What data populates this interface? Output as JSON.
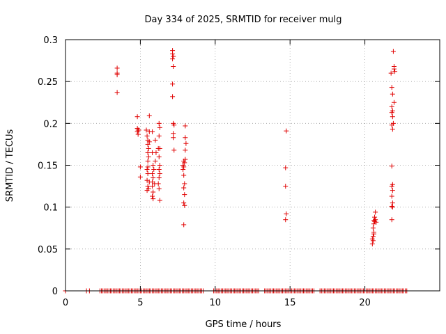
{
  "chart_data": {
    "type": "scatter",
    "title": "Day 334 of 2025, SRMTID for receiver mulg",
    "xlabel": "GPS time / hours",
    "ylabel": "SRMTID / TECUs",
    "xlim": [
      0,
      25
    ],
    "ylim": [
      0,
      0.3
    ],
    "xticks": [
      0,
      5,
      10,
      15,
      20
    ],
    "xtick_labels": [
      "0",
      "5",
      "10",
      "15",
      "20"
    ],
    "yticks": [
      0,
      0.05,
      0.1,
      0.15,
      0.2,
      0.25,
      0.3
    ],
    "ytick_labels": [
      "0",
      "0.05",
      "0.1",
      "0.15",
      "0.2",
      "0.25",
      "0.3"
    ],
    "grid": true,
    "marker": "+",
    "color": "#e00000",
    "series": [
      {
        "name": "SRMTID",
        "points": [
          [
            3.45,
            0.266
          ],
          [
            3.45,
            0.26
          ],
          [
            3.45,
            0.258
          ],
          [
            3.45,
            0.237
          ],
          [
            4.8,
            0.208
          ],
          [
            4.8,
            0.194
          ],
          [
            4.85,
            0.192
          ],
          [
            4.8,
            0.19
          ],
          [
            4.9,
            0.192
          ],
          [
            4.85,
            0.187
          ],
          [
            5.0,
            0.148
          ],
          [
            5.0,
            0.136
          ],
          [
            5.4,
            0.192
          ],
          [
            5.45,
            0.185
          ],
          [
            5.5,
            0.18
          ],
          [
            5.6,
            0.19
          ],
          [
            5.5,
            0.175
          ],
          [
            5.55,
            0.17
          ],
          [
            5.5,
            0.165
          ],
          [
            5.6,
            0.209
          ],
          [
            5.6,
            0.178
          ],
          [
            5.55,
            0.16
          ],
          [
            5.5,
            0.155
          ],
          [
            5.5,
            0.148
          ],
          [
            5.45,
            0.145
          ],
          [
            5.5,
            0.14
          ],
          [
            5.45,
            0.132
          ],
          [
            5.5,
            0.125
          ],
          [
            5.45,
            0.12
          ],
          [
            5.6,
            0.13
          ],
          [
            5.55,
            0.122
          ],
          [
            5.8,
            0.19
          ],
          [
            5.8,
            0.165
          ],
          [
            5.85,
            0.15
          ],
          [
            5.8,
            0.14
          ],
          [
            5.85,
            0.135
          ],
          [
            5.8,
            0.13
          ],
          [
            5.8,
            0.125
          ],
          [
            5.85,
            0.118
          ],
          [
            5.8,
            0.113
          ],
          [
            5.85,
            0.11
          ],
          [
            5.9,
            0.145
          ],
          [
            5.95,
            0.128
          ],
          [
            6.0,
            0.18
          ],
          [
            6.05,
            0.165
          ],
          [
            6.0,
            0.155
          ],
          [
            6.25,
            0.2
          ],
          [
            6.3,
            0.195
          ],
          [
            6.25,
            0.185
          ],
          [
            6.2,
            0.17
          ],
          [
            6.3,
            0.17
          ],
          [
            6.25,
            0.16
          ],
          [
            6.3,
            0.15
          ],
          [
            6.25,
            0.145
          ],
          [
            6.3,
            0.14
          ],
          [
            6.25,
            0.135
          ],
          [
            6.2,
            0.128
          ],
          [
            6.25,
            0.122
          ],
          [
            6.3,
            0.108
          ],
          [
            7.15,
            0.287
          ],
          [
            7.15,
            0.283
          ],
          [
            7.2,
            0.28
          ],
          [
            7.15,
            0.277
          ],
          [
            7.2,
            0.268
          ],
          [
            7.15,
            0.247
          ],
          [
            7.15,
            0.232
          ],
          [
            7.2,
            0.2
          ],
          [
            7.25,
            0.198
          ],
          [
            7.2,
            0.188
          ],
          [
            7.2,
            0.183
          ],
          [
            7.25,
            0.168
          ],
          [
            7.9,
            0.155
          ],
          [
            7.95,
            0.153
          ],
          [
            7.85,
            0.15
          ],
          [
            7.9,
            0.148
          ],
          [
            7.85,
            0.145
          ],
          [
            7.9,
            0.138
          ],
          [
            7.95,
            0.128
          ],
          [
            7.9,
            0.123
          ],
          [
            7.95,
            0.115
          ],
          [
            7.9,
            0.105
          ],
          [
            7.95,
            0.102
          ],
          [
            7.9,
            0.079
          ],
          [
            8.0,
            0.197
          ],
          [
            8.0,
            0.183
          ],
          [
            8.05,
            0.176
          ],
          [
            8.0,
            0.168
          ],
          [
            8.0,
            0.157
          ],
          [
            14.75,
            0.191
          ],
          [
            14.7,
            0.147
          ],
          [
            14.7,
            0.125
          ],
          [
            14.75,
            0.092
          ],
          [
            14.7,
            0.085
          ],
          [
            20.55,
            0.065
          ],
          [
            20.6,
            0.068
          ],
          [
            20.5,
            0.062
          ],
          [
            20.55,
            0.06
          ],
          [
            20.5,
            0.056
          ],
          [
            20.6,
            0.07
          ],
          [
            20.55,
            0.075
          ],
          [
            20.6,
            0.08
          ],
          [
            20.65,
            0.083
          ],
          [
            20.7,
            0.085
          ],
          [
            20.65,
            0.088
          ],
          [
            20.7,
            0.094
          ],
          [
            20.6,
            0.084
          ],
          [
            20.75,
            0.082
          ],
          [
            21.75,
            0.26
          ],
          [
            21.8,
            0.243
          ],
          [
            21.85,
            0.235
          ],
          [
            21.8,
            0.22
          ],
          [
            21.85,
            0.215
          ],
          [
            21.8,
            0.213
          ],
          [
            21.85,
            0.208
          ],
          [
            21.8,
            0.198
          ],
          [
            21.85,
            0.193
          ],
          [
            21.8,
            0.149
          ],
          [
            21.85,
            0.127
          ],
          [
            21.8,
            0.125
          ],
          [
            21.85,
            0.12
          ],
          [
            21.8,
            0.113
          ],
          [
            21.85,
            0.105
          ],
          [
            21.8,
            0.101
          ],
          [
            21.85,
            0.1
          ],
          [
            21.8,
            0.085
          ],
          [
            21.9,
            0.286
          ],
          [
            21.95,
            0.268
          ],
          [
            21.95,
            0.265
          ],
          [
            22.0,
            0.262
          ],
          [
            21.95,
            0.225
          ],
          [
            21.9,
            0.2
          ]
        ],
        "zero_points": [
          0.0,
          1.4,
          1.6,
          2.3,
          2.4,
          2.5,
          2.6,
          2.7,
          2.8,
          2.9,
          3.0,
          3.1,
          3.2,
          3.3,
          3.4,
          3.5,
          3.6,
          3.7,
          3.8,
          3.9,
          4.0,
          4.1,
          4.2,
          4.3,
          4.4,
          4.5,
          4.6,
          4.7,
          4.8,
          4.9,
          5.0,
          5.1,
          5.2,
          5.3,
          5.4,
          5.5,
          5.6,
          5.7,
          5.8,
          5.9,
          6.0,
          6.1,
          6.2,
          6.3,
          6.4,
          6.5,
          6.6,
          6.7,
          6.8,
          6.9,
          7.0,
          7.1,
          7.2,
          7.3,
          7.4,
          7.5,
          7.6,
          7.7,
          7.8,
          7.9,
          8.0,
          8.1,
          8.2,
          8.3,
          8.4,
          8.5,
          8.6,
          8.7,
          8.8,
          8.9,
          9.0,
          9.1,
          9.2,
          9.9,
          10.0,
          10.1,
          10.2,
          10.3,
          10.4,
          10.5,
          10.6,
          10.7,
          10.8,
          10.9,
          11.0,
          11.1,
          11.2,
          11.3,
          11.4,
          11.5,
          11.6,
          11.7,
          11.8,
          11.9,
          12.0,
          12.1,
          12.2,
          12.3,
          12.4,
          12.5,
          12.6,
          12.7,
          12.8,
          12.9,
          13.3,
          13.4,
          13.5,
          13.6,
          13.7,
          13.8,
          13.9,
          14.0,
          14.1,
          14.2,
          14.3,
          14.4,
          14.5,
          14.6,
          14.7,
          14.8,
          14.9,
          15.0,
          15.1,
          15.2,
          15.3,
          15.4,
          15.5,
          15.6,
          15.7,
          15.8,
          15.9,
          16.0,
          16.1,
          16.2,
          16.3,
          16.4,
          16.5,
          16.6,
          17.0,
          17.1,
          17.2,
          17.3,
          17.4,
          17.5,
          17.6,
          17.7,
          17.8,
          17.9,
          18.0,
          18.1,
          18.2,
          18.3,
          18.4,
          18.5,
          18.6,
          18.7,
          18.8,
          18.9,
          19.0,
          19.1,
          19.2,
          19.3,
          19.4,
          19.5,
          19.6,
          19.7,
          19.8,
          19.9,
          20.0,
          20.1,
          20.2,
          20.3,
          20.4,
          20.5,
          20.6,
          20.7,
          20.8,
          20.9,
          21.0,
          21.1,
          21.2,
          21.3,
          21.4,
          21.5,
          21.6,
          21.7,
          21.8,
          21.9,
          22.0,
          22.1,
          22.2,
          22.3,
          22.4,
          22.5,
          22.6,
          22.7,
          22.8
        ]
      }
    ]
  }
}
